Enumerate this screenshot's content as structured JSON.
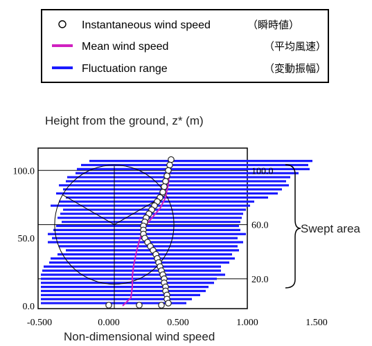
{
  "legend": {
    "items": [
      {
        "marker": "circle",
        "en": "Instantaneous wind speed",
        "ja": "（瞬時値）"
      },
      {
        "marker": "line",
        "color": "#d020c0",
        "en": "Mean wind speed",
        "ja": "（平均風速）"
      },
      {
        "marker": "line",
        "color": "#1a1aff",
        "en": "Fluctuation range",
        "ja": "（変動振幅）"
      }
    ]
  },
  "axis_title_y": "Height from the ground, z* (m)",
  "axis_title_x": "Non-dimensional wind speed",
  "swept_label": "Swept area",
  "chart_data": {
    "type": "scatter",
    "xlabel": "Non-dimensional wind speed",
    "ylabel": "Height from the ground, z* (m)",
    "xlim": [
      -0.5,
      1.5
    ],
    "ylim": [
      0,
      115
    ],
    "x_ticks": [
      "-0.500",
      "0.000",
      "0.500",
      "1.000",
      "1.500"
    ],
    "x_tick_values": [
      -0.5,
      0,
      0.5,
      1.0,
      1.5
    ],
    "y_ticks_left": [
      "0.0",
      "50.0",
      "100.0"
    ],
    "y_tick_values_left": [
      0,
      50,
      100
    ],
    "y_ticks_right": [
      "20.0",
      "60.0",
      "100.0"
    ],
    "y_tick_values_right": [
      20,
      60,
      100
    ],
    "rotor": {
      "hub_height": 60,
      "radius": 40,
      "hub_x": 0.04
    },
    "series": [
      {
        "name": "Instantaneous wind speed",
        "points": [
          [
            0.45,
            108
          ],
          [
            0.44,
            104
          ],
          [
            0.43,
            100
          ],
          [
            0.42,
            96
          ],
          [
            0.41,
            92
          ],
          [
            0.4,
            88
          ],
          [
            0.39,
            84
          ],
          [
            0.37,
            80
          ],
          [
            0.35,
            77
          ],
          [
            0.33,
            74
          ],
          [
            0.31,
            71
          ],
          [
            0.29,
            68
          ],
          [
            0.27,
            65
          ],
          [
            0.26,
            62
          ],
          [
            0.25,
            59
          ],
          [
            0.25,
            56
          ],
          [
            0.25,
            53
          ],
          [
            0.26,
            50
          ],
          [
            0.28,
            47
          ],
          [
            0.3,
            44
          ],
          [
            0.32,
            41
          ],
          [
            0.34,
            38
          ],
          [
            0.35,
            35
          ],
          [
            0.36,
            32
          ],
          [
            0.37,
            29
          ],
          [
            0.38,
            26
          ],
          [
            0.39,
            23
          ],
          [
            0.4,
            20
          ],
          [
            0.4,
            17
          ],
          [
            0.41,
            14
          ],
          [
            0.41,
            11
          ],
          [
            0.42,
            8
          ],
          [
            0.42,
            5
          ],
          [
            0.43,
            2
          ],
          [
            0.38,
            0.5
          ],
          [
            0.22,
            0.5
          ],
          [
            0.0,
            0.5
          ]
        ]
      },
      {
        "name": "Mean wind speed",
        "points": [
          [
            0.44,
            100
          ],
          [
            0.43,
            90
          ],
          [
            0.41,
            80
          ],
          [
            0.37,
            72
          ],
          [
            0.32,
            66
          ],
          [
            0.27,
            60
          ],
          [
            0.24,
            54
          ],
          [
            0.22,
            48
          ],
          [
            0.2,
            40
          ],
          [
            0.18,
            30
          ],
          [
            0.17,
            22
          ],
          [
            0.17,
            14
          ],
          [
            0.16,
            6
          ],
          [
            0.1,
            0
          ]
        ]
      },
      {
        "name": "Fluctuation range",
        "ranges": [
          [
            -0.14,
            1.47,
            107
          ],
          [
            -0.2,
            1.44,
            104
          ],
          [
            -0.23,
            1.45,
            101
          ],
          [
            -0.24,
            1.37,
            98
          ],
          [
            -0.3,
            1.31,
            95
          ],
          [
            -0.31,
            1.28,
            92
          ],
          [
            -0.36,
            1.3,
            89
          ],
          [
            -0.33,
            1.25,
            86
          ],
          [
            -0.38,
            1.22,
            83
          ],
          [
            -0.31,
            1.15,
            80
          ],
          [
            -0.36,
            1.05,
            77
          ],
          [
            -0.42,
            1.02,
            74
          ],
          [
            -0.33,
            0.99,
            71
          ],
          [
            -0.35,
            0.97,
            68
          ],
          [
            -0.37,
            0.96,
            65
          ],
          [
            -0.34,
            0.95,
            62
          ],
          [
            -0.38,
            0.94,
            59
          ],
          [
            -0.4,
            0.95,
            56
          ],
          [
            -0.44,
            0.99,
            53
          ],
          [
            -0.41,
            0.93,
            50
          ],
          [
            -0.44,
            0.97,
            47
          ],
          [
            -0.36,
            0.93,
            44
          ],
          [
            -0.31,
            0.94,
            41
          ],
          [
            -0.37,
            0.89,
            38
          ],
          [
            -0.42,
            0.91,
            35
          ],
          [
            -0.43,
            0.87,
            32
          ],
          [
            -0.47,
            0.81,
            29
          ],
          [
            -0.48,
            0.81,
            26
          ],
          [
            -0.49,
            0.84,
            23
          ],
          [
            -0.49,
            0.78,
            20
          ],
          [
            -0.49,
            0.76,
            17
          ],
          [
            -0.49,
            0.72,
            14
          ],
          [
            -0.49,
            0.7,
            11
          ],
          [
            -0.49,
            0.66,
            8
          ],
          [
            -0.49,
            0.6,
            5
          ],
          [
            -0.49,
            0.56,
            2
          ]
        ]
      }
    ]
  }
}
